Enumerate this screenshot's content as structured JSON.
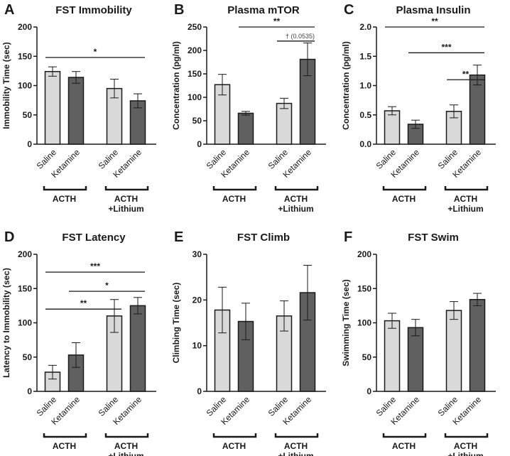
{
  "chart_data": [
    {
      "panel": "A",
      "type": "bar",
      "title": "FST Immobility",
      "ylabel": "Immobility Time (sec)",
      "ylim": [
        0,
        200
      ],
      "yticks": [
        "0",
        "50",
        "100",
        "150",
        "200"
      ],
      "categories": [
        "Saline",
        "Ketamine",
        "Saline",
        "Ketamine"
      ],
      "groups": [
        "ACTH",
        "ACTH",
        "+Lithium"
      ],
      "values": [
        124,
        114,
        95,
        74
      ],
      "errors": [
        8,
        10,
        16,
        12
      ],
      "significance": [
        {
          "from": 0,
          "to": 3,
          "label": "*"
        }
      ]
    },
    {
      "panel": "B",
      "type": "bar",
      "title": "Plasma mTOR",
      "ylabel": "Concentration (pg/ml)",
      "ylim": [
        0,
        250
      ],
      "yticks": [
        "0",
        "50",
        "100",
        "150",
        "200",
        "250"
      ],
      "categories": [
        "Saline",
        "Ketamine",
        "Saline",
        "Ketamine"
      ],
      "groups": [
        "ACTH",
        "ACTH",
        "+Lithium"
      ],
      "values": [
        127,
        66,
        87,
        181
      ],
      "errors": [
        22,
        4,
        11,
        35
      ],
      "significance": [
        {
          "from": 1,
          "to": 3,
          "label": "**"
        },
        {
          "from": 2,
          "to": 3,
          "label": "† (0.0535)"
        }
      ]
    },
    {
      "panel": "C",
      "type": "bar",
      "title": "Plasma Insulin",
      "ylabel": "Concentration (pg/ml)",
      "ylim": [
        0,
        2.0
      ],
      "yticks": [
        "0.0",
        "0.5",
        "1.0",
        "1.5",
        "2.0"
      ],
      "categories": [
        "Saline",
        "Ketamine",
        "Saline",
        "Ketamine"
      ],
      "groups": [
        "ACTH",
        "ACTH",
        "+Lithium"
      ],
      "values": [
        0.57,
        0.34,
        0.56,
        1.18
      ],
      "errors": [
        0.07,
        0.07,
        0.11,
        0.17
      ],
      "significance": [
        {
          "from": 0,
          "to": 3,
          "label": "**"
        },
        {
          "from": 1,
          "to": 3,
          "label": "***"
        },
        {
          "from": 2,
          "to": 3,
          "label": "**"
        }
      ]
    },
    {
      "panel": "D",
      "type": "bar",
      "title": "FST Latency",
      "ylabel": "Latency to Immobility (sec)",
      "ylim": [
        0,
        200
      ],
      "yticks": [
        "0",
        "50",
        "100",
        "150",
        "200"
      ],
      "categories": [
        "Saline",
        "Ketamine",
        "Saline",
        "Ketamine"
      ],
      "groups": [
        "ACTH",
        "ACTH",
        "+Lithium"
      ],
      "values": [
        28,
        53,
        110,
        125
      ],
      "errors": [
        10,
        18,
        24,
        12
      ],
      "significance": [
        {
          "from": 0,
          "to": 3,
          "label": "***"
        },
        {
          "from": 1,
          "to": 3,
          "label": "*"
        },
        {
          "from": 0,
          "to": 2,
          "label": "**"
        }
      ]
    },
    {
      "panel": "E",
      "type": "bar",
      "title": "FST Climb",
      "ylabel": "Climbing Time (sec)",
      "ylim": [
        0,
        30
      ],
      "yticks": [
        "0",
        "10",
        "20",
        "30"
      ],
      "categories": [
        "Saline",
        "Ketamine",
        "Saline",
        "Ketamine"
      ],
      "groups": [
        "ACTH",
        "ACTH",
        "+Lithium"
      ],
      "values": [
        17.8,
        15.3,
        16.5,
        21.6
      ],
      "errors": [
        5,
        4,
        3.3,
        6
      ],
      "significance": []
    },
    {
      "panel": "F",
      "type": "bar",
      "title": "FST Swim",
      "ylabel": "Swimming Time (sec)",
      "ylim": [
        0,
        200
      ],
      "yticks": [
        "0",
        "50",
        "100",
        "150",
        "200"
      ],
      "categories": [
        "Saline",
        "Ketamine",
        "Saline",
        "Ketamine"
      ],
      "groups": [
        "ACTH",
        "ACTH",
        "+Lithium"
      ],
      "values": [
        103,
        93,
        118,
        134
      ],
      "errors": [
        11,
        12,
        13,
        9
      ],
      "significance": []
    }
  ],
  "colors": {
    "saline": "#d9d9d9",
    "ketamine": "#606060",
    "ink": "#1a1a1a"
  }
}
